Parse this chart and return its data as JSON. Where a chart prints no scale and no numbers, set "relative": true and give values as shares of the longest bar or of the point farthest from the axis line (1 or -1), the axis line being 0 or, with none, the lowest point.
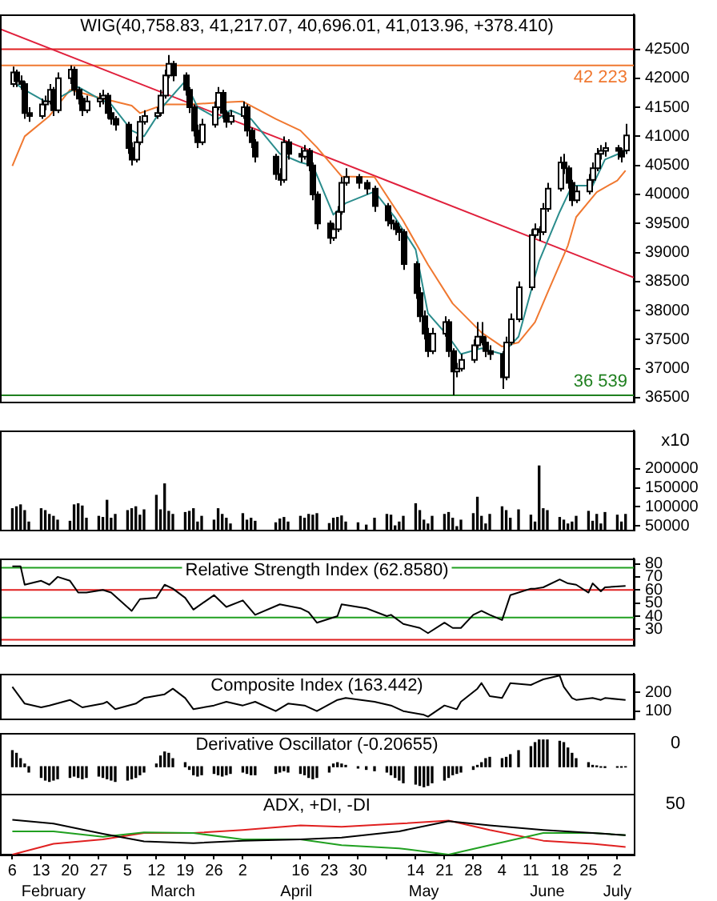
{
  "chart_data": [
    {
      "type": "candlestick",
      "title": "WIG(40,758.83, 41,217.07, 40,696.01, 41,013.96, +378.410)",
      "tick_labels": "y",
      "xlim": [
        "--02-03",
        "--07-06"
      ],
      "ylim": [
        36430,
        43100
      ],
      "yticks": [
        36500,
        37000,
        37500,
        38000,
        38500,
        39000,
        39500,
        40000,
        40500,
        41000,
        41500,
        42000,
        42500
      ],
      "x": [
        "--02-06",
        "--02-07",
        "--02-08",
        "--02-09",
        "--02-10",
        "--02-13",
        "--02-14",
        "--02-15",
        "--02-16",
        "--02-17",
        "--02-20",
        "--02-21",
        "--02-22",
        "--02-23",
        "--02-24",
        "--02-27",
        "--02-28",
        "--02-29",
        "--03-01",
        "--03-02",
        "--03-05",
        "--03-06",
        "--03-07",
        "--03-08",
        "--03-09",
        "--03-12",
        "--03-13",
        "--03-14",
        "--03-15",
        "--03-16",
        "--03-19",
        "--03-20",
        "--03-21",
        "--03-22",
        "--03-23",
        "--03-26",
        "--03-27",
        "--03-28",
        "--03-29",
        "--03-30",
        "--04-02",
        "--04-03",
        "--04-04",
        "--04-05",
        "--04-10",
        "--04-11",
        "--04-12",
        "--04-13",
        "--04-16",
        "--04-17",
        "--04-18",
        "--04-19",
        "--04-20",
        "--04-23",
        "--04-24",
        "--04-25",
        "--04-26",
        "--04-27",
        "--04-30",
        "--05-02",
        "--05-04",
        "--05-07",
        "--05-08",
        "--05-09",
        "--05-10",
        "--05-11",
        "--05-14",
        "--05-15",
        "--05-16",
        "--05-17",
        "--05-18",
        "--05-21",
        "--05-22",
        "--05-23",
        "--05-24",
        "--05-25",
        "--05-28",
        "--05-29",
        "--05-30",
        "--05-31",
        "--06-01",
        "--06-04",
        "--06-05",
        "--06-06",
        "--06-08",
        "--06-11",
        "--06-12",
        "--06-13",
        "--06-14",
        "--06-15",
        "--06-18",
        "--06-19",
        "--06-20",
        "--06-21",
        "--06-22",
        "--06-25",
        "--06-26",
        "--06-27",
        "--06-28",
        "--06-29",
        "--07-02",
        "--07-03",
        "--07-04"
      ],
      "ohlc": [
        [
          41900,
          42200,
          41850,
          42100
        ],
        [
          42100,
          42150,
          41850,
          41950
        ],
        [
          41950,
          42050,
          41800,
          41900
        ],
        [
          41900,
          41950,
          41300,
          41400
        ],
        [
          41400,
          41500,
          41250,
          41350
        ],
        [
          41350,
          41650,
          41300,
          41550
        ],
        [
          41550,
          41700,
          41450,
          41600
        ],
        [
          41600,
          41900,
          41550,
          41800
        ],
        [
          41800,
          41850,
          41350,
          41450
        ],
        [
          41450,
          42100,
          41400,
          42000
        ],
        [
          42000,
          42223,
          41900,
          42150
        ],
        [
          42150,
          42200,
          41700,
          41800
        ],
        [
          41800,
          41850,
          41550,
          41650
        ],
        [
          41650,
          41700,
          41350,
          41450
        ],
        [
          41450,
          41700,
          41400,
          41600
        ],
        [
          41600,
          41750,
          41500,
          41650
        ],
        [
          41650,
          41800,
          41550,
          41700
        ],
        [
          41700,
          41750,
          41300,
          41400
        ],
        [
          41400,
          41500,
          41200,
          41300
        ],
        [
          41300,
          41350,
          41100,
          41200
        ],
        [
          41200,
          41250,
          40700,
          40800
        ],
        [
          40800,
          40900,
          40500,
          40600
        ],
        [
          40600,
          41000,
          40550,
          40900
        ],
        [
          40900,
          41350,
          40850,
          41250
        ],
        [
          41250,
          41450,
          41200,
          41350
        ],
        [
          41350,
          41500,
          41300,
          41400
        ],
        [
          41400,
          41800,
          41350,
          41700
        ],
        [
          41700,
          42150,
          41650,
          42050
        ],
        [
          42050,
          42400,
          42000,
          42250
        ],
        [
          42250,
          42300,
          41950,
          42050
        ],
        [
          42050,
          42100,
          41700,
          41800
        ],
        [
          41800,
          41850,
          41400,
          41500
        ],
        [
          41500,
          41550,
          41000,
          41100
        ],
        [
          41100,
          41200,
          40800,
          40900
        ],
        [
          40900,
          41300,
          40850,
          41200
        ],
        [
          41200,
          41600,
          41150,
          41500
        ],
        [
          41500,
          41850,
          41450,
          41750
        ],
        [
          41750,
          41800,
          41300,
          41400
        ],
        [
          41400,
          41450,
          41150,
          41250
        ],
        [
          41250,
          41450,
          41200,
          41350
        ],
        [
          41350,
          41600,
          41300,
          41500
        ],
        [
          41500,
          41550,
          41000,
          41100
        ],
        [
          41100,
          41150,
          40800,
          40900
        ],
        [
          40900,
          40950,
          40550,
          40650
        ],
        [
          40650,
          40700,
          40250,
          40350
        ],
        [
          40350,
          40450,
          40150,
          40250
        ],
        [
          40250,
          41000,
          40200,
          40900
        ],
        [
          40900,
          40950,
          40600,
          40700
        ],
        [
          40700,
          40800,
          40550,
          40650
        ],
        [
          40650,
          40850,
          40600,
          40750
        ],
        [
          40750,
          40800,
          40400,
          40500
        ],
        [
          40500,
          40550,
          39900,
          40000
        ],
        [
          40000,
          40050,
          39400,
          39500
        ],
        [
          39500,
          39550,
          39150,
          39250
        ],
        [
          39250,
          39500,
          39200,
          39400
        ],
        [
          39400,
          39800,
          39350,
          39700
        ],
        [
          39700,
          40300,
          39650,
          40200
        ],
        [
          40200,
          40450,
          40150,
          40300
        ],
        [
          40300,
          40350,
          40100,
          40200
        ],
        [
          40200,
          40250,
          40000,
          40100
        ],
        [
          40100,
          40150,
          39700,
          39800
        ],
        [
          39800,
          39850,
          39450,
          39550
        ],
        [
          39550,
          39650,
          39400,
          39500
        ],
        [
          39500,
          39550,
          39300,
          39400
        ],
        [
          39400,
          39450,
          39200,
          39350
        ],
        [
          39350,
          39400,
          38700,
          38800
        ],
        [
          38800,
          38850,
          38200,
          38300
        ],
        [
          38300,
          38400,
          37800,
          37900
        ],
        [
          37900,
          38000,
          37500,
          37600
        ],
        [
          37600,
          37700,
          37200,
          37300
        ],
        [
          37300,
          37700,
          37250,
          37600
        ],
        [
          37600,
          37900,
          37550,
          37800
        ],
        [
          37800,
          37850,
          37200,
          37300
        ],
        [
          37300,
          37350,
          36539,
          36950
        ],
        [
          36950,
          37100,
          36850,
          37000
        ],
        [
          37000,
          37250,
          36950,
          37150
        ],
        [
          37150,
          37500,
          37100,
          37400
        ],
        [
          37400,
          37800,
          37350,
          37550
        ],
        [
          37550,
          37800,
          37400,
          37450
        ],
        [
          37450,
          37550,
          37200,
          37300
        ],
        [
          37300,
          37400,
          37150,
          37250
        ],
        [
          37250,
          37300,
          36650,
          36850
        ],
        [
          36850,
          37550,
          36800,
          37450
        ],
        [
          37450,
          37950,
          37400,
          37850
        ],
        [
          37850,
          38500,
          37800,
          38400
        ],
        [
          38400,
          39400,
          38350,
          39300
        ],
        [
          39300,
          39500,
          39250,
          39400
        ],
        [
          39400,
          39450,
          39200,
          39350
        ],
        [
          39350,
          39850,
          39300,
          39750
        ],
        [
          39750,
          40200,
          39700,
          40100
        ],
        [
          40100,
          40650,
          40050,
          40550
        ],
        [
          40550,
          40700,
          40350,
          40450
        ],
        [
          40450,
          40500,
          40100,
          40200
        ],
        [
          40200,
          40250,
          39800,
          39900
        ],
        [
          39900,
          40150,
          39850,
          40050
        ],
        [
          40050,
          40350,
          40000,
          40250
        ],
        [
          40250,
          40550,
          40200,
          40450
        ],
        [
          40450,
          40800,
          40400,
          40700
        ],
        [
          40700,
          40850,
          40600,
          40750
        ],
        [
          40750,
          40900,
          40650,
          40800
        ],
        [
          40800,
          40850,
          40600,
          40750
        ],
        [
          40750,
          40800,
          40550,
          40650
        ],
        [
          40758.83,
          41217.07,
          40696.01,
          41013.96
        ]
      ],
      "series": [
        {
          "type": "line",
          "color": "#2a8c8c",
          "x": [
            "--02-06",
            "--02-09",
            "--02-14",
            "--02-17",
            "--02-22",
            "--02-27",
            "--03-01",
            "--03-06",
            "--03-09",
            "--03-14",
            "--03-19",
            "--03-22",
            "--03-27",
            "--03-30",
            "--04-04",
            "--04-11",
            "--04-16",
            "--04-19",
            "--04-24",
            "--04-27",
            "--05-04",
            "--05-09",
            "--05-14",
            "--05-17",
            "--05-22",
            "--05-25",
            "--05-30",
            "--06-04",
            "--06-08",
            "--06-13",
            "--06-18",
            "--06-21",
            "--06-26",
            "--06-29",
            "--07-04"
          ],
          "values": [
            41950,
            41800,
            41600,
            41650,
            41850,
            41650,
            41550,
            41100,
            41000,
            41550,
            41950,
            41500,
            41300,
            41450,
            41300,
            40700,
            40550,
            40500,
            39650,
            39850,
            40050,
            39600,
            39050,
            37950,
            37550,
            37250,
            37350,
            37250,
            37550,
            38850,
            39700,
            40150,
            40150,
            40600,
            40750
          ]
        },
        {
          "type": "line",
          "color": "#f07830",
          "x": [
            "--02-06",
            "--02-09",
            "--02-15",
            "--02-20",
            "--02-28",
            "--03-06",
            "--03-08",
            "--03-14",
            "--03-20",
            "--03-27",
            "--04-02",
            "--04-10",
            "--04-16",
            "--04-20",
            "--04-26",
            "--05-04",
            "--05-11",
            "--05-17",
            "--05-23",
            "--05-30",
            "--06-04",
            "--06-08",
            "--06-12",
            "--06-15",
            "--06-20",
            "--06-22",
            "--06-27",
            "--07-02",
            "--07-04"
          ],
          "values": [
            40490,
            41000,
            41350,
            41800,
            41650,
            41530,
            41400,
            41550,
            41550,
            41580,
            41600,
            41300,
            41100,
            40810,
            40310,
            40300,
            39540,
            38790,
            38120,
            37620,
            37380,
            37450,
            37800,
            38300,
            39120,
            39610,
            40040,
            40240,
            40410
          ]
        },
        {
          "type": "line",
          "color": "#e0203c",
          "x": [
            "--02-03",
            "--07-06"
          ],
          "values": [
            42850,
            38570
          ]
        }
      ],
      "ref_lines": [
        {
          "axis": "y",
          "value": 42500,
          "color": "#e02020"
        },
        {
          "axis": "y",
          "value": 42223,
          "label": "42 223",
          "color": "#f07830"
        },
        {
          "axis": "y",
          "value": 36539,
          "label": "36 539",
          "color": "#208020"
        }
      ]
    },
    {
      "type": "bar",
      "tick_labels": "y",
      "xlim": [
        "--02-03",
        "--07-06"
      ],
      "ylim": [
        40000,
        300000
      ],
      "yticks": [
        50000,
        100000,
        150000,
        200000
      ],
      "color": "#000000",
      "annotations": [
        "x10"
      ],
      "x": [
        "--02-06",
        "--02-07",
        "--02-08",
        "--02-09",
        "--02-10",
        "--02-13",
        "--02-14",
        "--02-15",
        "--02-16",
        "--02-17",
        "--02-20",
        "--02-21",
        "--02-22",
        "--02-23",
        "--02-24",
        "--02-27",
        "--02-28",
        "--02-29",
        "--03-01",
        "--03-02",
        "--03-05",
        "--03-06",
        "--03-07",
        "--03-08",
        "--03-09",
        "--03-12",
        "--03-13",
        "--03-14",
        "--03-15",
        "--03-16",
        "--03-19",
        "--03-20",
        "--03-21",
        "--03-22",
        "--03-23",
        "--03-26",
        "--03-27",
        "--03-28",
        "--03-29",
        "--03-30",
        "--04-02",
        "--04-03",
        "--04-04",
        "--04-05",
        "--04-10",
        "--04-11",
        "--04-12",
        "--04-13",
        "--04-16",
        "--04-17",
        "--04-18",
        "--04-19",
        "--04-20",
        "--04-23",
        "--04-24",
        "--04-25",
        "--04-26",
        "--04-27",
        "--04-30",
        "--05-02",
        "--05-04",
        "--05-07",
        "--05-08",
        "--05-09",
        "--05-10",
        "--05-11",
        "--05-14",
        "--05-15",
        "--05-16",
        "--05-17",
        "--05-18",
        "--05-21",
        "--05-22",
        "--05-23",
        "--05-24",
        "--05-25",
        "--05-28",
        "--05-29",
        "--05-30",
        "--05-31",
        "--06-01",
        "--06-04",
        "--06-05",
        "--06-06",
        "--06-08",
        "--06-11",
        "--06-12",
        "--06-13",
        "--06-14",
        "--06-15",
        "--06-18",
        "--06-19",
        "--06-20",
        "--06-21",
        "--06-22",
        "--06-25",
        "--06-26",
        "--06-27",
        "--06-28",
        "--06-29",
        "--07-02",
        "--07-03",
        "--07-04"
      ],
      "values": [
        95000,
        100000,
        105000,
        90000,
        60000,
        95000,
        90000,
        80000,
        75000,
        65000,
        62000,
        105000,
        108000,
        102000,
        70000,
        75000,
        72000,
        117000,
        70000,
        80000,
        90000,
        95000,
        100000,
        78000,
        92000,
        130000,
        92000,
        160000,
        88000,
        80000,
        85000,
        88000,
        95000,
        60000,
        75000,
        65000,
        95000,
        80000,
        70000,
        55000,
        82000,
        65000,
        70000,
        62000,
        58000,
        68000,
        72000,
        60000,
        75000,
        70000,
        80000,
        78000,
        82000,
        56000,
        70000,
        72000,
        76000,
        60000,
        58000,
        52000,
        70000,
        80000,
        78000,
        50000,
        60000,
        75000,
        108000,
        90000,
        65000,
        55000,
        75000,
        80000,
        85000,
        70000,
        48000,
        65000,
        82000,
        125000,
        75000,
        55000,
        80000,
        100000,
        90000,
        70000,
        92000,
        78000,
        60000,
        207000,
        95000,
        90000,
        72000,
        65000,
        55000,
        60000,
        75000,
        88000,
        62000,
        80000,
        55000,
        85000,
        78000,
        60000,
        80000
      ]
    },
    {
      "type": "line",
      "title": "Relative Strength Index (62.8580)",
      "tick_labels": "y",
      "xlim": [
        "--02-03",
        "--07-06"
      ],
      "ylim": [
        18,
        84
      ],
      "yticks": [
        30,
        40,
        50,
        60,
        70,
        80
      ],
      "ref_lines": [
        {
          "axis": "y",
          "value": 77,
          "color": "#20a020"
        },
        {
          "axis": "y",
          "value": 60,
          "color": "#e02020"
        },
        {
          "axis": "y",
          "value": 39,
          "color": "#20a020"
        },
        {
          "axis": "y",
          "value": 22,
          "color": "#e02020"
        }
      ],
      "series": [
        {
          "color": "#000000",
          "x": [
            "--02-06",
            "--02-08",
            "--02-09",
            "--02-13",
            "--02-15",
            "--02-17",
            "--02-20",
            "--02-22",
            "--02-24",
            "--02-28",
            "--03-01",
            "--03-06",
            "--03-08",
            "--03-12",
            "--03-14",
            "--03-16",
            "--03-19",
            "--03-21",
            "--03-26",
            "--03-29",
            "--04-02",
            "--04-05",
            "--04-11",
            "--04-16",
            "--04-18",
            "--04-20",
            "--04-25",
            "--04-26",
            "--05-02",
            "--05-07",
            "--05-08",
            "--05-11",
            "--05-15",
            "--05-17",
            "--05-21",
            "--05-23",
            "--05-25",
            "--05-28",
            "--05-30",
            "--06-01",
            "--06-04",
            "--06-06",
            "--06-11",
            "--06-12",
            "--06-14",
            "--06-18",
            "--06-20",
            "--06-22",
            "--06-25",
            "--06-26",
            "--06-28",
            "--06-29",
            "--07-04"
          ],
          "values": [
            78,
            78,
            64,
            67,
            64,
            70,
            67,
            58,
            58,
            60,
            58,
            44,
            53,
            54,
            64,
            61,
            54,
            45,
            56,
            47,
            52,
            41,
            49,
            46,
            43,
            35,
            40,
            49,
            46,
            40,
            41,
            34,
            31,
            27,
            35,
            31,
            31,
            41,
            44,
            41,
            37,
            56,
            61,
            61,
            62,
            68,
            65,
            64,
            58,
            65,
            59,
            62,
            63
          ]
        }
      ]
    },
    {
      "type": "line",
      "title": "Composite Index (163.442)",
      "tick_labels": "y",
      "xlim": [
        "--02-03",
        "--07-06"
      ],
      "ylim": [
        60,
        300
      ],
      "yticks": [
        100,
        200
      ],
      "series": [
        {
          "color": "#000000",
          "x": [
            "--02-06",
            "--02-09",
            "--02-13",
            "--02-15",
            "--02-20",
            "--02-23",
            "--02-28",
            "--02-29",
            "--03-02",
            "--03-07",
            "--03-09",
            "--03-14",
            "--03-16",
            "--03-19",
            "--03-21",
            "--03-26",
            "--03-29",
            "--04-02",
            "--04-05",
            "--04-10",
            "--04-13",
            "--04-17",
            "--04-20",
            "--04-25",
            "--04-27",
            "--05-04",
            "--05-08",
            "--05-11",
            "--05-16",
            "--05-17",
            "--05-21",
            "--05-24",
            "--05-25",
            "--05-29",
            "--05-30",
            "--06-01",
            "--06-04",
            "--06-06",
            "--06-11",
            "--06-12",
            "--06-14",
            "--06-18",
            "--06-19",
            "--06-21",
            "--06-22",
            "--06-26",
            "--06-28",
            "--06-29",
            "--07-04"
          ],
          "values": [
            230,
            140,
            120,
            130,
            160,
            120,
            140,
            150,
            110,
            140,
            170,
            190,
            220,
            170,
            110,
            130,
            150,
            130,
            150,
            100,
            140,
            130,
            100,
            160,
            170,
            150,
            130,
            100,
            80,
            70,
            130,
            110,
            150,
            220,
            250,
            180,
            170,
            250,
            240,
            250,
            270,
            290,
            230,
            170,
            160,
            170,
            160,
            170,
            160
          ]
        }
      ]
    },
    {
      "type": "bar",
      "relative": true,
      "title": "Derivative Oscillator (-0.20655)",
      "tick_labels": false,
      "xlim": [
        "--02-03",
        "--07-06"
      ],
      "color": "#000000",
      "annotations": [
        "0"
      ],
      "x": [
        "--02-06",
        "--02-07",
        "--02-08",
        "--02-09",
        "--02-10",
        "--02-13",
        "--02-14",
        "--02-15",
        "--02-16",
        "--02-17",
        "--02-20",
        "--02-21",
        "--02-22",
        "--02-23",
        "--02-24",
        "--02-27",
        "--02-28",
        "--02-29",
        "--03-01",
        "--03-02",
        "--03-05",
        "--03-06",
        "--03-07",
        "--03-08",
        "--03-09",
        "--03-12",
        "--03-13",
        "--03-14",
        "--03-15",
        "--03-16",
        "--03-19",
        "--03-20",
        "--03-21",
        "--03-22",
        "--03-23",
        "--03-26",
        "--03-27",
        "--03-28",
        "--03-29",
        "--03-30",
        "--04-02",
        "--04-03",
        "--04-04",
        "--04-05",
        "--04-10",
        "--04-11",
        "--04-12",
        "--04-13",
        "--04-16",
        "--04-17",
        "--04-18",
        "--04-19",
        "--04-20",
        "--04-23",
        "--04-24",
        "--04-25",
        "--04-26",
        "--04-27",
        "--04-30",
        "--05-02",
        "--05-04",
        "--05-07",
        "--05-08",
        "--05-09",
        "--05-10",
        "--05-11",
        "--05-14",
        "--05-15",
        "--05-16",
        "--05-17",
        "--05-18",
        "--05-21",
        "--05-22",
        "--05-23",
        "--05-24",
        "--05-25",
        "--05-28",
        "--05-29",
        "--05-30",
        "--05-31",
        "--06-01",
        "--06-04",
        "--06-05",
        "--06-06",
        "--06-08",
        "--06-11",
        "--06-12",
        "--06-13",
        "--06-14",
        "--06-15",
        "--06-18",
        "--06-19",
        "--06-20",
        "--06-21",
        "--06-22",
        "--06-25",
        "--06-26",
        "--06-27",
        "--06-28",
        "--06-29",
        "--07-02",
        "--07-03",
        "--07-04"
      ],
      "values": [
        0.6,
        0.5,
        0.3,
        0.1,
        -0.2,
        -0.4,
        -0.5,
        -0.55,
        -0.5,
        -0.45,
        -0.4,
        -0.35,
        -0.4,
        -0.45,
        -0.4,
        -0.35,
        -0.4,
        -0.45,
        -0.5,
        -0.55,
        -0.5,
        -0.45,
        -0.4,
        -0.3,
        -0.2,
        0.1,
        0.4,
        0.55,
        0.5,
        0.3,
        0.15,
        -0.1,
        -0.3,
        -0.35,
        -0.3,
        -0.25,
        -0.3,
        -0.35,
        -0.3,
        -0.25,
        -0.2,
        -0.25,
        -0.3,
        -0.3,
        -0.25,
        -0.2,
        -0.15,
        -0.2,
        -0.25,
        -0.3,
        -0.4,
        -0.45,
        -0.4,
        -0.2,
        0.1,
        0.15,
        0.1,
        0.05,
        -0.05,
        -0.1,
        -0.15,
        -0.2,
        -0.3,
        -0.4,
        -0.5,
        -0.6,
        -0.65,
        -0.7,
        -0.75,
        -0.7,
        -0.6,
        -0.5,
        -0.4,
        -0.3,
        -0.25,
        -0.2,
        -0.1,
        0.05,
        0.15,
        0.3,
        0.35,
        0.3,
        0.35,
        0.45,
        0.6,
        0.75,
        0.9,
        1,
        1,
        1,
        0.95,
        0.9,
        0.7,
        0.5,
        0.3,
        0.15,
        0.05,
        0.03,
        -0.02,
        -0.03,
        -0.02,
        -0.02,
        -0.01
      ]
    },
    {
      "type": "line",
      "relative": true,
      "title": "ADX, +DI, -DI",
      "tick_labels": "x",
      "xlim": [
        "--02-03",
        "--07-06"
      ],
      "xticks": [
        {
          "value": "--02-06",
          "label": "6"
        },
        {
          "value": "--02-13",
          "label": "13"
        },
        {
          "value": "--02-20",
          "label": "20"
        },
        {
          "value": "--02-27",
          "label": "27"
        },
        {
          "value": "--03-05",
          "label": "5"
        },
        {
          "value": "--03-12",
          "label": "12"
        },
        {
          "value": "--03-19",
          "label": "19"
        },
        {
          "value": "--03-26",
          "label": "26"
        },
        {
          "value": "--04-02",
          "label": "2"
        },
        {
          "value": "--04-09",
          "label": null
        },
        {
          "value": "--04-16",
          "label": "16"
        },
        {
          "value": "--04-23",
          "label": "23"
        },
        {
          "value": "--04-30",
          "label": "30"
        },
        {
          "value": "--05-07",
          "label": null
        },
        {
          "value": "--05-14",
          "label": "14"
        },
        {
          "value": "--05-21",
          "label": "21"
        },
        {
          "value": "--05-28",
          "label": "28"
        },
        {
          "value": "--06-04",
          "label": "4"
        },
        {
          "value": "--06-11",
          "label": "11"
        },
        {
          "value": "--06-18",
          "label": "18"
        },
        {
          "value": "--06-25",
          "label": "25"
        },
        {
          "value": "--07-02",
          "label": "2"
        }
      ],
      "annotations": [
        "50"
      ],
      "x2lim": [
        "--02-03",
        "--07-06"
      ],
      "x2ticks": [
        {
          "value": "--02-16",
          "label": "February"
        },
        {
          "value": "--03-16",
          "label": "March"
        },
        {
          "value": "--04-15",
          "label": "April"
        },
        {
          "value": "--05-16",
          "label": "May"
        },
        {
          "value": "--06-15",
          "label": "June"
        },
        {
          "value": "--07-02",
          "label": "July"
        }
      ],
      "series": [
        {
          "color": "#000000",
          "x": [
            "--02-06",
            "--02-16",
            "--02-28",
            "--03-09",
            "--03-21",
            "--04-02",
            "--04-16",
            "--04-26",
            "--05-10",
            "--05-22",
            "--06-01",
            "--06-14",
            "--06-26",
            "--07-04"
          ],
          "values": [
            1,
            0.89,
            0.6,
            0.38,
            0.33,
            0.4,
            0.44,
            0.49,
            0.67,
            0.96,
            0.84,
            0.71,
            0.62,
            0.56
          ]
        },
        {
          "color": "#20a020",
          "x": [
            "--02-06",
            "--02-16",
            "--02-28",
            "--03-09",
            "--03-21",
            "--04-02",
            "--04-16",
            "--04-26",
            "--05-10",
            "--05-22",
            "--06-01",
            "--06-14",
            "--06-26",
            "--07-04"
          ],
          "values": [
            0.67,
            0.67,
            0.51,
            0.64,
            0.62,
            0.44,
            0.44,
            0.27,
            0.18,
            0,
            0.27,
            0.62,
            0.62,
            0.56
          ]
        },
        {
          "color": "#e02020",
          "x": [
            "--02-06",
            "--02-16",
            "--02-28",
            "--03-09",
            "--03-21",
            "--04-02",
            "--04-16",
            "--04-26",
            "--05-10",
            "--05-22",
            "--06-01",
            "--06-14",
            "--06-26",
            "--07-04"
          ],
          "values": [
            0,
            0.31,
            0.44,
            0.62,
            0.62,
            0.71,
            0.84,
            0.8,
            0.89,
            0.98,
            0.71,
            0.4,
            0.31,
            0.22
          ]
        }
      ]
    }
  ]
}
